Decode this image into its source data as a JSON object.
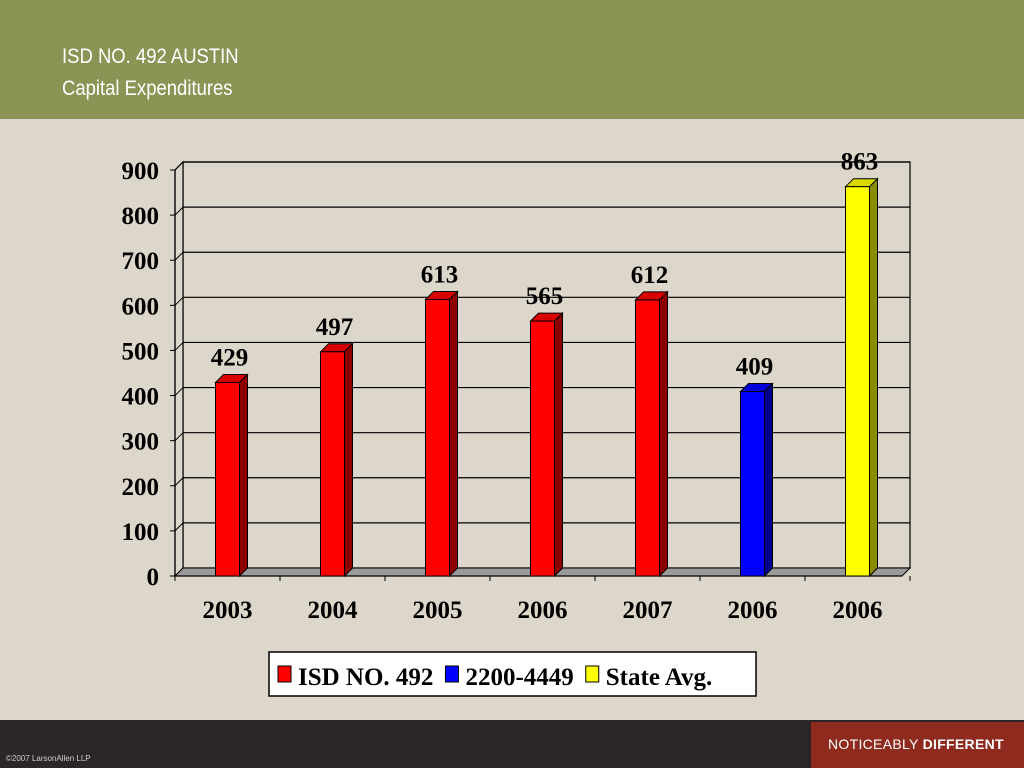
{
  "slide": {
    "title_line1": "ISD NO. 492 AUSTIN",
    "title_line2": "Capital Expenditures",
    "copyright": "©2007 LarsonAllen LLP",
    "tagline_regular": "NOTICEABLY ",
    "tagline_bold": "DIFFERENT"
  },
  "colors": {
    "header": "#8c9455",
    "background": "#ddd6cb",
    "footer": "#2b2726",
    "tagline_box": "#8f2a1e"
  },
  "chart_data": {
    "type": "bar",
    "title": "",
    "xlabel": "",
    "ylabel": "",
    "ylim": [
      0,
      900
    ],
    "yticks": [
      0,
      100,
      200,
      300,
      400,
      500,
      600,
      700,
      800,
      900
    ],
    "grid": true,
    "legend_position": "bottom",
    "categories": [
      "2003",
      "2004",
      "2005",
      "2006",
      "2007",
      "2006",
      "2006"
    ],
    "series": [
      {
        "name": "ISD NO. 492",
        "color": "#ff0000",
        "values": [
          429,
          497,
          613,
          565,
          612,
          null,
          null
        ]
      },
      {
        "name": "2200-4449",
        "color": "#0000ff",
        "values": [
          null,
          null,
          null,
          null,
          null,
          409,
          null
        ]
      },
      {
        "name": "State Avg.",
        "color": "#ffff00",
        "values": [
          null,
          null,
          null,
          null,
          null,
          null,
          863
        ]
      }
    ]
  }
}
